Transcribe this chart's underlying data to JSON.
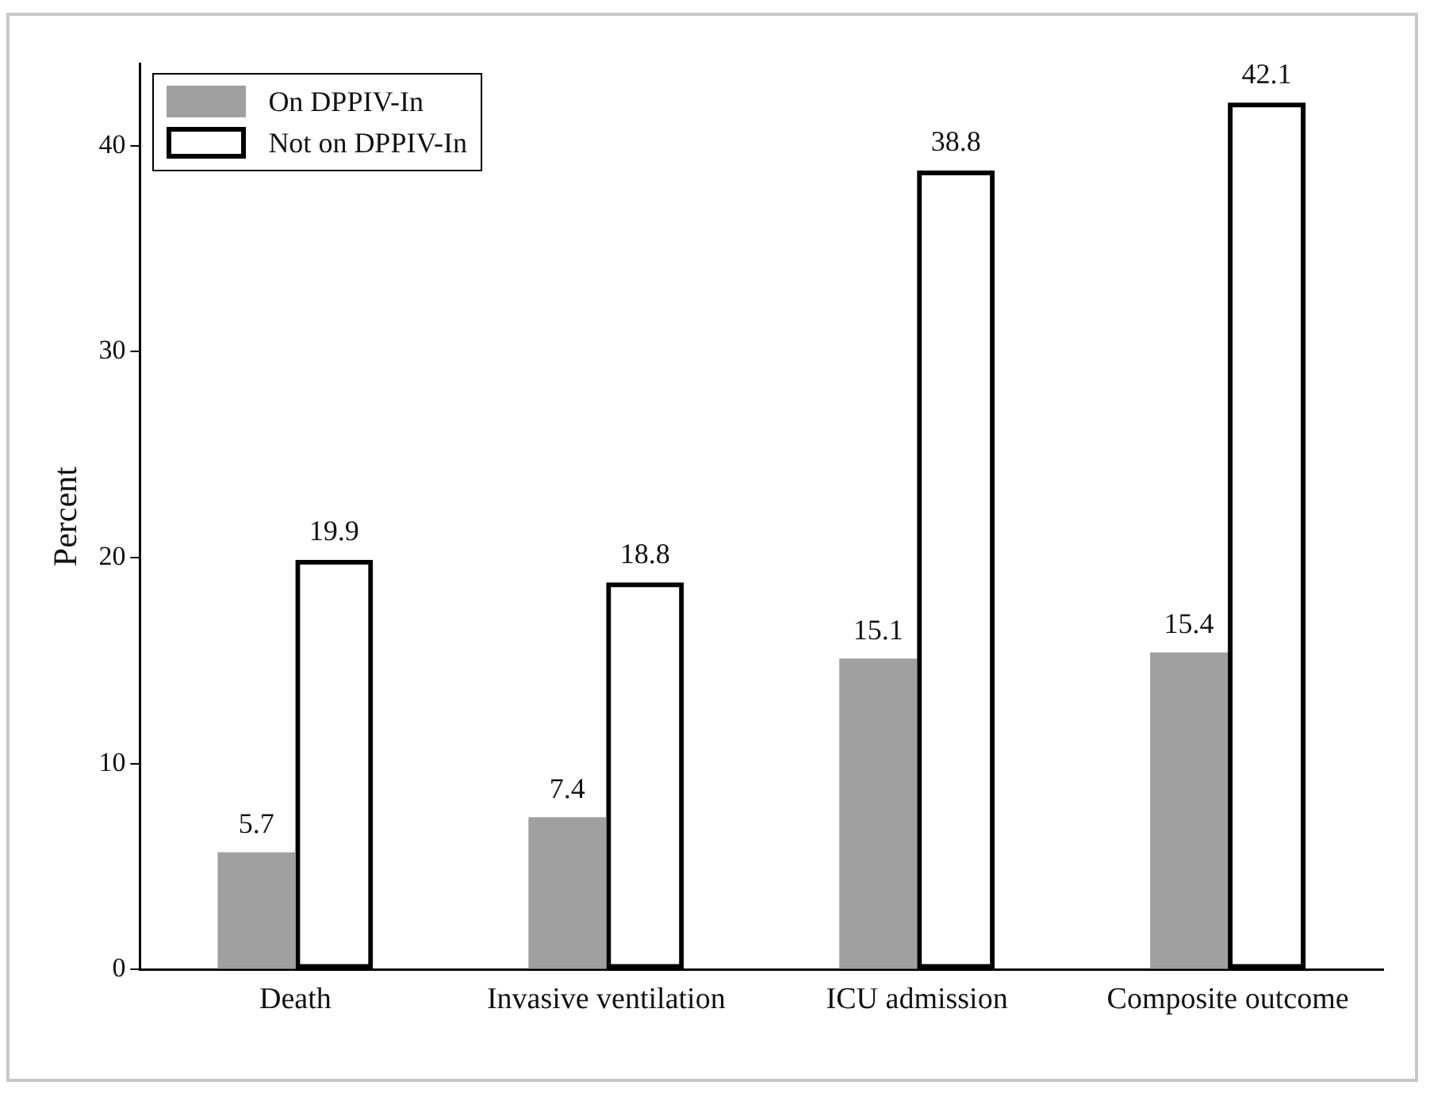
{
  "chart_data": {
    "type": "bar",
    "ylabel": "Percent",
    "categories": [
      "Death",
      "Invasive ventilation",
      "ICU admission",
      "Composite outcome"
    ],
    "series": [
      {
        "name": "On DPPIV-In",
        "color": "#a0a0a0",
        "values": [
          5.7,
          7.4,
          15.1,
          15.4
        ]
      },
      {
        "name": "Not on DPPIV-In",
        "color": "#000000",
        "values": [
          19.9,
          18.8,
          38.8,
          42.1
        ]
      }
    ],
    "ylim": [
      0,
      44
    ],
    "yticks": [
      0,
      10,
      20,
      30,
      40
    ],
    "grid": false,
    "legend": "top left",
    "data_labels": true
  }
}
